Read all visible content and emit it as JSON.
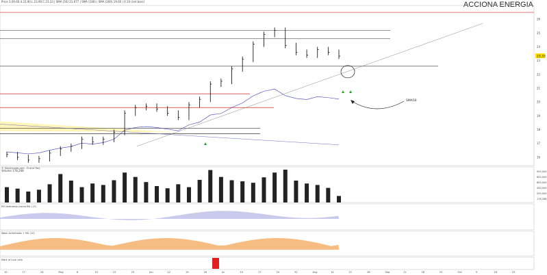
{
  "title": "ACCIONA ENERGIA",
  "legend_line": "Price 3.09.60.4.23.90.L.23.90.C.23.33 | SMA (50) 21.677 | SMA (180) | SMA (200) 19.60 | 0.10 (net bars)",
  "panels": {
    "price": {
      "y_ticks": [
        "26",
        "25",
        "24",
        "23",
        "22",
        "21",
        "20",
        "19",
        "18",
        "17",
        "16"
      ],
      "last_price": "23.33",
      "left_label": "© Stockcharts.com - End of Day"
    },
    "volume": {
      "label": "Volume 178,268",
      "y_ticks": [
        "900,000",
        "800,000",
        "600,000",
        "400,000",
        "200,000",
        "178,268"
      ]
    },
    "rsi": {
      "label": "RSI Avanzada (como Rel.) (5)"
    },
    "macd": {
      "label": "Wash Aceleradas + MA (10)"
    },
    "candle": {
      "label": "Mark of Luck vela"
    }
  },
  "annotations": {
    "arrow_label": "SMA50"
  },
  "x_axis": {
    "labels": [
      "10",
      "17",
      "24",
      "May",
      "8",
      "15",
      "22",
      "29",
      "Jun",
      "12",
      "19",
      "26",
      "Jul",
      "10",
      "17",
      "24",
      "31",
      "Aug",
      "14",
      "21",
      "28",
      "Sep",
      "11",
      "18",
      "25",
      "Oct",
      "9",
      "16",
      "23"
    ]
  },
  "colors": {
    "up": "#000000",
    "down": "#000000",
    "sma50": "#3a3fb0",
    "resistance": "#d62728",
    "support": "#333333",
    "band": "#fff3a8"
  },
  "chart_data": {
    "type": "bar",
    "x_dates": [
      "04-10",
      "04-14",
      "04-18",
      "04-22",
      "04-26",
      "04-30",
      "05-04",
      "05-08",
      "05-12",
      "05-16",
      "05-20",
      "05-24",
      "05-28",
      "06-01",
      "06-05",
      "06-09",
      "06-13",
      "06-17",
      "06-21",
      "06-25",
      "06-29",
      "07-03",
      "07-07",
      "07-11",
      "07-15",
      "07-19",
      "07-23",
      "07-27",
      "07-31",
      "08-04",
      "08-08",
      "08-12"
    ],
    "close": [
      16.2,
      16.0,
      15.8,
      15.9,
      16.3,
      16.6,
      16.8,
      17.3,
      17.1,
      17.3,
      17.8,
      19.2,
      19.6,
      19.7,
      19.5,
      19.2,
      18.9,
      19.8,
      20.2,
      21.3,
      21.5,
      22.4,
      23.1,
      24.2,
      24.9,
      25.2,
      24.1,
      23.6,
      23.4,
      23.8,
      23.6,
      23.33
    ],
    "volume": [
      420000,
      380000,
      300000,
      350000,
      500000,
      780000,
      600000,
      420000,
      520000,
      480000,
      610000,
      820000,
      700000,
      560000,
      450000,
      390000,
      500000,
      420000,
      620000,
      890000,
      700000,
      610000,
      580000,
      540000,
      690000,
      820000,
      900000,
      600000,
      520000,
      480000,
      400000,
      178268
    ],
    "ylim": [
      15.5,
      27
    ],
    "levels": [
      26.5,
      25.2,
      24.6,
      22.6,
      20.6,
      19.6,
      18.1,
      17.7
    ]
  }
}
